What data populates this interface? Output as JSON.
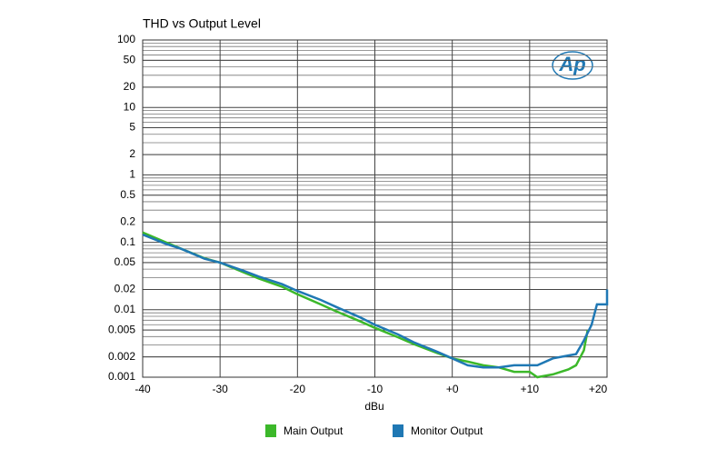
{
  "chart_data": {
    "type": "line",
    "title": "THD vs Output Level",
    "x_label": "dBu",
    "logo": "Ap",
    "log_y": true,
    "grid": true,
    "minor_grid": true,
    "legend": "bottom",
    "xlim": [
      -40,
      20
    ],
    "ylim": [
      0.001,
      100
    ],
    "xticks": [
      -40,
      -30,
      -20,
      -10,
      {
        "value": 0,
        "label": "+0"
      },
      {
        "value": 10,
        "label": "+10"
      },
      {
        "value": 20,
        "label": "+20"
      }
    ],
    "yticks": [
      100,
      50,
      20,
      10,
      5,
      2,
      1,
      0.5,
      0.2,
      0.1,
      0.05,
      0.02,
      0.01,
      0.005,
      0.002,
      0.001
    ],
    "series": [
      {
        "name": "Main Output",
        "color": "#3cb82a",
        "x": [
          -40,
          -37,
          -35,
          -32,
          -30,
          -27,
          -25,
          -22,
          -20,
          -17,
          -15,
          -12,
          -10,
          -7,
          -5,
          -2,
          0,
          2,
          4,
          6,
          8,
          10,
          11,
          13,
          15,
          16,
          17,
          17.5
        ],
        "values": [
          0.14,
          0.1,
          0.08,
          0.058,
          0.05,
          0.036,
          0.029,
          0.022,
          0.017,
          0.012,
          0.0095,
          0.0068,
          0.0054,
          0.0039,
          0.0031,
          0.0023,
          0.0019,
          0.0017,
          0.0015,
          0.0014,
          0.0012,
          0.0012,
          0.001,
          0.0011,
          0.0013,
          0.0015,
          0.0025,
          0.005
        ]
      },
      {
        "name": "Monitor Output",
        "color": "#1f78b4",
        "x": [
          -40,
          -37,
          -35,
          -32,
          -30,
          -27,
          -25,
          -22,
          -20,
          -17,
          -15,
          -12,
          -10,
          -7,
          -5,
          -2,
          0,
          2,
          4,
          6,
          8,
          10,
          11,
          13,
          15,
          16,
          17,
          18,
          18.7,
          20,
          20
        ],
        "values": [
          0.13,
          0.095,
          0.08,
          0.057,
          0.05,
          0.038,
          0.031,
          0.024,
          0.019,
          0.014,
          0.011,
          0.0078,
          0.006,
          0.0043,
          0.0033,
          0.0024,
          0.0019,
          0.0015,
          0.0014,
          0.0014,
          0.0015,
          0.0015,
          0.0015,
          0.0019,
          0.0021,
          0.0022,
          0.0035,
          0.006,
          0.012,
          0.012,
          0.02
        ]
      }
    ]
  }
}
